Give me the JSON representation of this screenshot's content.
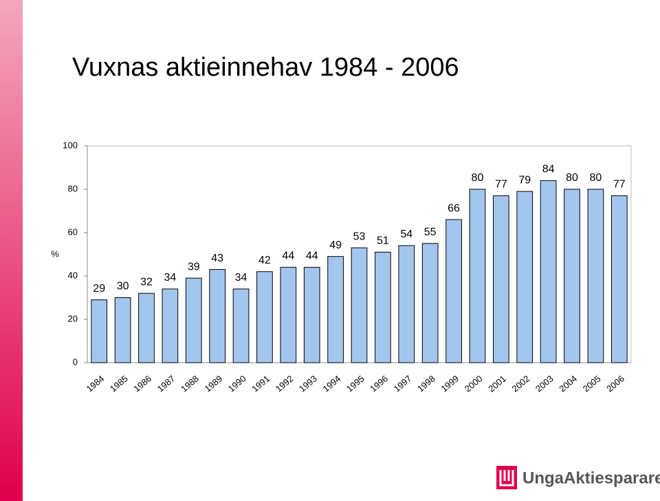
{
  "chart_data": {
    "type": "bar",
    "title": "Vuxnas aktieinnehav 1984 - 2006",
    "ylabel": "%",
    "categories": [
      "1984",
      "1985",
      "1986",
      "1987",
      "1988",
      "1989",
      "1990",
      "1991",
      "1992",
      "1993",
      "1994",
      "1995",
      "1996",
      "1997",
      "1998",
      "1999",
      "2000",
      "2001",
      "2002",
      "2003",
      "2004",
      "2005",
      "2006"
    ],
    "values": [
      29,
      30,
      32,
      34,
      39,
      43,
      34,
      42,
      44,
      44,
      49,
      53,
      51,
      54,
      55,
      66,
      80,
      77,
      79,
      84,
      80,
      80,
      77
    ],
    "color": "#a3c6ef",
    "ylim": [
      0,
      100
    ],
    "yticks": [
      0,
      20,
      40,
      60,
      80,
      100
    ],
    "grid": false
  },
  "logo": "UngaAktiesparare"
}
